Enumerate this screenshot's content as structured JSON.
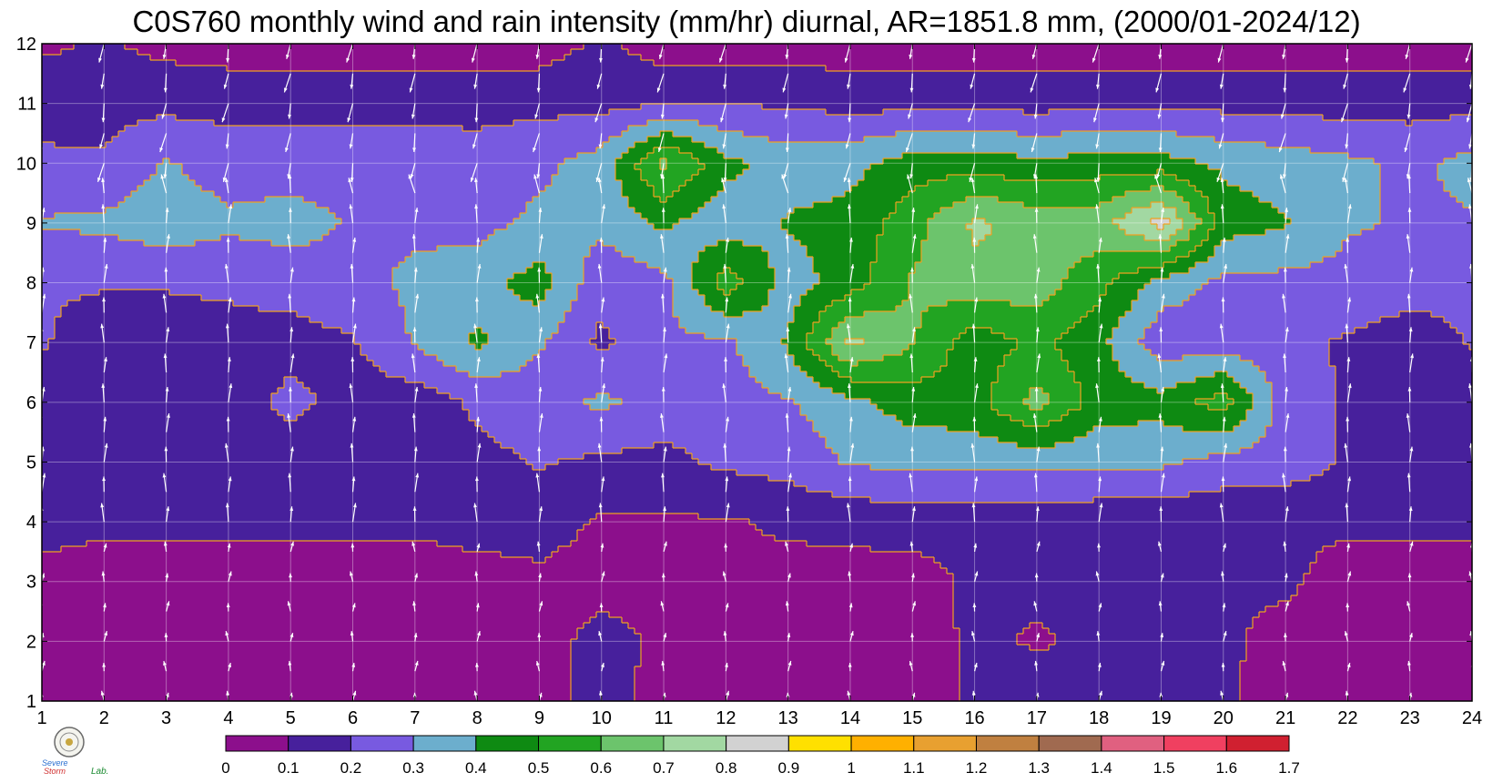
{
  "title": "C0S760 monthly wind and rain intensity (mm/hr) diurnal, AR=1851.8 mm, (2000/01-2024/12)",
  "logo": {
    "text_top": "Severe",
    "text_bottom": "Storm",
    "text_suffix": "Lab."
  },
  "chart_data": {
    "type": "contour",
    "x_ticks": [
      "1",
      "2",
      "3",
      "4",
      "5",
      "6",
      "7",
      "8",
      "9",
      "10",
      "11",
      "12",
      "13",
      "14",
      "15",
      "16",
      "17",
      "18",
      "19",
      "20",
      "21",
      "22",
      "23",
      "24"
    ],
    "y_ticks": [
      "1",
      "2",
      "3",
      "4",
      "5",
      "6",
      "7",
      "8",
      "9",
      "10",
      "11",
      "12"
    ],
    "xlim": [
      1,
      24
    ],
    "ylim": [
      1,
      12
    ],
    "levels": [
      "0",
      "0.1",
      "0.2",
      "0.3",
      "0.4",
      "0.5",
      "0.6",
      "0.7",
      "0.8",
      "0.9",
      "1",
      "1.1",
      "1.2",
      "1.3",
      "1.4",
      "1.5",
      "1.6",
      "1.7"
    ],
    "colors": [
      "#8c0f8c",
      "#47209c",
      "#785ae0",
      "#6caecd",
      "#0e8a12",
      "#22a422",
      "#6cc46c",
      "#a2d8a2",
      "#d2d2d2",
      "#ffe000",
      "#ffb000",
      "#e8a030",
      "#c08040",
      "#a06a50",
      "#e06080",
      "#f04060",
      "#d02030"
    ],
    "contour_line_color": "#f0a020",
    "grid": true,
    "rain_mm_per_hr": [
      [
        0.05,
        0.05,
        0.06,
        0.05,
        0.05,
        0.05,
        0.05,
        0.06,
        0.05,
        0.15,
        0.05,
        0.06,
        0.05,
        0.05,
        0.05,
        0.12,
        0.15,
        0.13,
        0.12,
        0.12,
        0.05,
        0.06,
        0.06,
        0.06
      ],
      [
        0.05,
        0.05,
        0.05,
        0.05,
        0.05,
        0.05,
        0.05,
        0.06,
        0.05,
        0.14,
        0.08,
        0.08,
        0.05,
        0.05,
        0.05,
        0.12,
        0.09,
        0.12,
        0.12,
        0.12,
        0.06,
        0.05,
        0.05,
        0.05
      ],
      [
        0.05,
        0.05,
        0.05,
        0.05,
        0.05,
        0.05,
        0.05,
        0.06,
        0.08,
        0.06,
        0.06,
        0.06,
        0.06,
        0.06,
        0.06,
        0.12,
        0.12,
        0.14,
        0.12,
        0.12,
        0.12,
        0.05,
        0.05,
        0.05
      ],
      [
        0.15,
        0.12,
        0.12,
        0.12,
        0.12,
        0.12,
        0.12,
        0.14,
        0.14,
        0.09,
        0.09,
        0.09,
        0.12,
        0.13,
        0.14,
        0.13,
        0.13,
        0.13,
        0.12,
        0.12,
        0.12,
        0.12,
        0.12,
        0.12
      ],
      [
        0.15,
        0.15,
        0.14,
        0.14,
        0.14,
        0.14,
        0.15,
        0.17,
        0.21,
        0.18,
        0.17,
        0.22,
        0.24,
        0.31,
        0.33,
        0.33,
        0.33,
        0.32,
        0.32,
        0.26,
        0.25,
        0.19,
        0.15,
        0.19
      ],
      [
        0.13,
        0.14,
        0.14,
        0.14,
        0.23,
        0.16,
        0.14,
        0.22,
        0.25,
        0.32,
        0.26,
        0.26,
        0.29,
        0.37,
        0.45,
        0.46,
        0.64,
        0.45,
        0.44,
        0.55,
        0.25,
        0.19,
        0.14,
        0.14
      ],
      [
        0.21,
        0.14,
        0.14,
        0.16,
        0.16,
        0.19,
        0.31,
        0.42,
        0.31,
        0.18,
        0.28,
        0.28,
        0.41,
        0.73,
        0.61,
        0.44,
        0.52,
        0.43,
        0.23,
        0.25,
        0.22,
        0.19,
        0.14,
        0.21
      ],
      [
        0.21,
        0.21,
        0.21,
        0.22,
        0.24,
        0.27,
        0.32,
        0.35,
        0.45,
        0.23,
        0.27,
        0.55,
        0.35,
        0.45,
        0.61,
        0.67,
        0.65,
        0.53,
        0.36,
        0.27,
        0.27,
        0.27,
        0.25,
        0.22
      ],
      [
        0.31,
        0.32,
        0.36,
        0.32,
        0.34,
        0.29,
        0.28,
        0.27,
        0.32,
        0.33,
        0.42,
        0.33,
        0.41,
        0.43,
        0.56,
        0.72,
        0.66,
        0.66,
        0.85,
        0.45,
        0.41,
        0.31,
        0.29,
        0.29
      ],
      [
        0.21,
        0.21,
        0.31,
        0.25,
        0.25,
        0.26,
        0.25,
        0.24,
        0.28,
        0.34,
        0.63,
        0.43,
        0.35,
        0.37,
        0.45,
        0.46,
        0.42,
        0.45,
        0.44,
        0.38,
        0.35,
        0.32,
        0.28,
        0.33
      ],
      [
        0.18,
        0.17,
        0.17,
        0.17,
        0.17,
        0.17,
        0.17,
        0.17,
        0.17,
        0.17,
        0.19,
        0.19,
        0.19,
        0.16,
        0.17,
        0.17,
        0.16,
        0.17,
        0.17,
        0.17,
        0.16,
        0.16,
        0.16,
        0.17
      ],
      [
        0.08,
        0.11,
        0.07,
        0.05,
        0.05,
        0.05,
        0.05,
        0.05,
        0.05,
        0.12,
        0.05,
        0.05,
        0.05,
        0.05,
        0.05,
        0.05,
        0.05,
        0.05,
        0.05,
        0.05,
        0.05,
        0.05,
        0.05,
        0.05
      ]
    ],
    "wind": {
      "u": [
        -0.12,
        -0.05,
        0.05,
        0.0,
        -0.08,
        0.03
      ],
      "v": [
        0.55,
        0.6,
        0.4,
        0.45,
        0.5,
        0.6
      ]
    }
  }
}
